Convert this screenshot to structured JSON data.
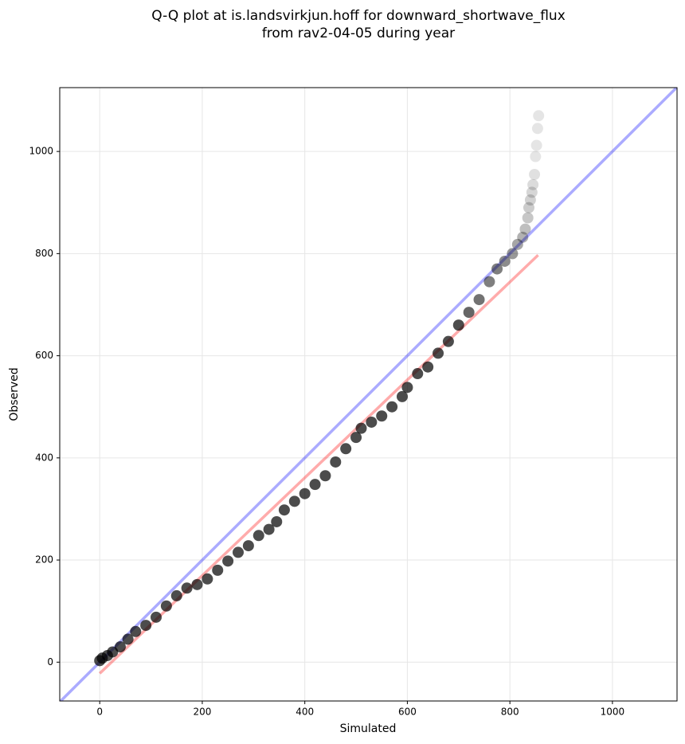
{
  "chart_data": {
    "type": "scatter",
    "title": [
      "Q-Q plot at is.landsvirkjun.hoff for downward_shortwave_flux",
      "from rav2-04-05 during year"
    ],
    "x_label": "Simulated",
    "y_label": "Observed",
    "xlim": [
      -78,
      1126
    ],
    "ylim": [
      -76,
      1125
    ],
    "xticks": [
      0,
      200,
      400,
      600,
      800,
      1000
    ],
    "yticks": [
      0,
      200,
      400,
      600,
      800,
      1000
    ],
    "grid": true,
    "lines": [
      {
        "color": "#0000ff",
        "alpha": 0.33,
        "x": [
          -78,
          1126
        ],
        "y": [
          -78,
          1126
        ]
      },
      {
        "color": "#ff0000",
        "alpha": 0.33,
        "x": [
          0,
          855
        ],
        "y": [
          -22,
          797
        ]
      }
    ],
    "series": [
      {
        "color": "#000000",
        "x": [
          0,
          5,
          15,
          25,
          40,
          55,
          70,
          90,
          110,
          130,
          150,
          170,
          190,
          210,
          230,
          250,
          270,
          290,
          310,
          330,
          345,
          360,
          380,
          400,
          420,
          440,
          460,
          480,
          500,
          510,
          530,
          550,
          570,
          590,
          600,
          620,
          640,
          660,
          680,
          700,
          720,
          740,
          760,
          775,
          790,
          805,
          815,
          825,
          830,
          835,
          837,
          840,
          843,
          845,
          848,
          850,
          852,
          854,
          856
        ],
        "values": [
          3,
          8,
          13,
          20,
          30,
          45,
          60,
          72,
          88,
          110,
          130,
          145,
          152,
          163,
          180,
          198,
          215,
          228,
          248,
          260,
          275,
          298,
          315,
          330,
          348,
          365,
          392,
          418,
          440,
          458,
          470,
          482,
          500,
          520,
          538,
          565,
          578,
          605,
          628,
          660,
          685,
          710,
          745,
          770,
          785,
          800,
          818,
          832,
          848,
          870,
          890,
          905,
          920,
          935,
          955,
          990,
          1012,
          1045,
          1070
        ],
        "alpha": [
          0.7,
          0.7,
          0.7,
          0.7,
          0.7,
          0.7,
          0.7,
          0.7,
          0.7,
          0.7,
          0.7,
          0.7,
          0.7,
          0.7,
          0.7,
          0.7,
          0.7,
          0.7,
          0.7,
          0.7,
          0.7,
          0.7,
          0.7,
          0.7,
          0.7,
          0.7,
          0.7,
          0.7,
          0.7,
          0.7,
          0.7,
          0.7,
          0.7,
          0.7,
          0.7,
          0.7,
          0.7,
          0.7,
          0.7,
          0.7,
          0.6,
          0.55,
          0.5,
          0.5,
          0.45,
          0.4,
          0.35,
          0.3,
          0.25,
          0.22,
          0.2,
          0.18,
          0.16,
          0.14,
          0.12,
          0.1,
          0.1,
          0.1,
          0.1
        ]
      }
    ]
  }
}
